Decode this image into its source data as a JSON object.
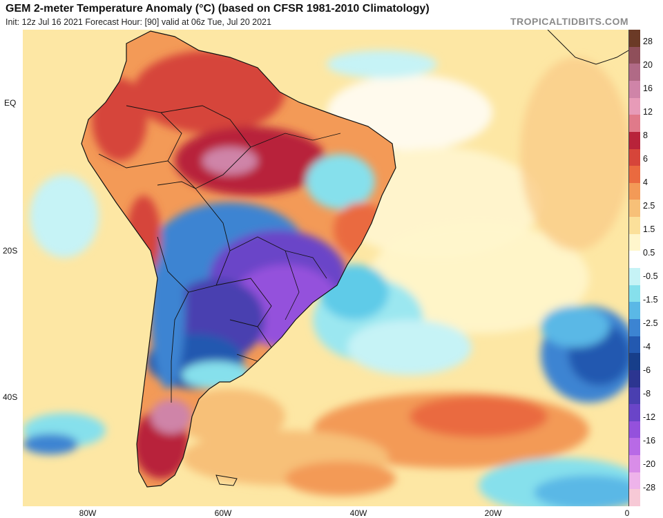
{
  "title": "GEM 2-meter Temperature Anomaly (°C) (based on CFSR 1981-2010 Climatology)",
  "subtitle": "Init: 12z Jul 16 2021   Forecast Hour: [90]   valid at 06z Tue, Jul 20 2021",
  "credit": "TROPICALTIDBITS.COM",
  "lat_ticks": [
    "EQ",
    "20S",
    "40S"
  ],
  "lon_ticks": [
    "80W",
    "60W",
    "40W",
    "20W",
    "0"
  ],
  "colorbar": {
    "labels": [
      "28",
      "20",
      "16",
      "12",
      "8",
      "6",
      "4",
      "2.5",
      "1.5",
      "0.5",
      "-0.5",
      "-1.5",
      "-2.5",
      "-4",
      "-6",
      "-8",
      "-12",
      "-16",
      "-20",
      "-28"
    ],
    "colors": [
      "#6b3a26",
      "#8f4f5a",
      "#b06a86",
      "#cf84a8",
      "#e79bb8",
      "#e07a8a",
      "#b8233a",
      "#d6453a",
      "#ea6a3f",
      "#f39a57",
      "#f7c078",
      "#fbe09a",
      "#fff6cc",
      "#ffffff",
      "#c6f3f6",
      "#86e0ec",
      "#5ab8e6",
      "#3c84d2",
      "#2359b0",
      "#173e8a",
      "#2c3590",
      "#4a3fb0",
      "#6a45c8",
      "#9451dc",
      "#b86ae6",
      "#d98de8",
      "#eeb3ea",
      "#f7c9d6"
    ]
  }
}
